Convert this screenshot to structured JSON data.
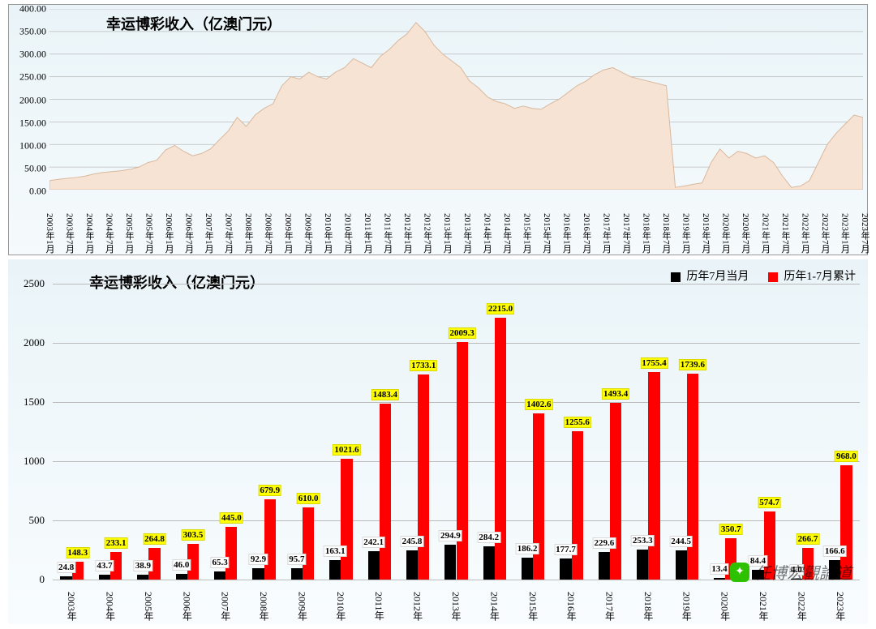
{
  "top_chart": {
    "type": "area",
    "title": "幸运博彩收入（亿澳门元）",
    "title_fontsize": 18,
    "background_gradient": [
      "#eaf4f8",
      "#f5fafc"
    ],
    "area_fill": "#f6e3d4",
    "area_stroke": "#d9b89c",
    "ylim": [
      0,
      400
    ],
    "ytick_step": 50,
    "yticks": [
      "0.00",
      "50.00",
      "100.00",
      "150.00",
      "200.00",
      "250.00",
      "300.00",
      "350.00",
      "400.00"
    ],
    "xlabels": [
      "2003年1月",
      "2003年7月",
      "2004年1月",
      "2004年7月",
      "2005年1月",
      "2005年7月",
      "2006年1月",
      "2006年7月",
      "2007年1月",
      "2007年7月",
      "2008年1月",
      "2008年7月",
      "2009年1月",
      "2009年7月",
      "2010年1月",
      "2010年7月",
      "2011年1月",
      "2011年7月",
      "2012年1月",
      "2012年7月",
      "2013年1月",
      "2013年7月",
      "2014年1月",
      "2014年7月",
      "2015年1月",
      "2015年7月",
      "2016年1月",
      "2016年7月",
      "2017年1月",
      "2017年7月",
      "2018年1月",
      "2018年7月",
      "2019年1月",
      "2019年7月",
      "2020年1月",
      "2020年7月",
      "2021年1月",
      "2021年7月",
      "2022年1月",
      "2022年7月",
      "2023年1月",
      "2023年7月"
    ],
    "series": [
      20,
      23,
      25,
      27,
      30,
      35,
      38,
      40,
      42,
      45,
      50,
      60,
      65,
      88,
      98,
      85,
      75,
      80,
      90,
      110,
      130,
      160,
      140,
      165,
      180,
      190,
      230,
      250,
      245,
      260,
      250,
      245,
      260,
      270,
      290,
      280,
      270,
      295,
      310,
      330,
      345,
      370,
      350,
      320,
      300,
      285,
      270,
      240,
      225,
      205,
      195,
      190,
      180,
      185,
      180,
      178,
      190,
      200,
      215,
      230,
      240,
      255,
      265,
      270,
      260,
      250,
      245,
      240,
      235,
      230,
      5,
      8,
      12,
      15,
      60,
      90,
      70,
      85,
      80,
      70,
      75,
      60,
      30,
      5,
      8,
      20,
      60,
      100,
      125,
      145,
      165,
      160
    ]
  },
  "bottom_chart": {
    "type": "grouped_bar",
    "title": "幸运博彩收入（亿澳门元）",
    "title_fontsize": 18,
    "background_gradient": [
      "#eaf4f8",
      "#f8fcfe"
    ],
    "ylim": [
      0,
      2500
    ],
    "ytick_step": 500,
    "yticks": [
      "0",
      "500",
      "1000",
      "1500",
      "2000",
      "2500"
    ],
    "grid_color": "#bbbbbb",
    "legend": [
      {
        "label": "历年7月当月",
        "color": "#000000"
      },
      {
        "label": "历年1-7月累计",
        "color": "#ff0000"
      }
    ],
    "label_bg_black": "#ffffff",
    "label_bg_red": "#ffff00",
    "bar_width_ratio": 0.3,
    "categories": [
      "2003年",
      "2004年",
      "2005年",
      "2006年",
      "2007年",
      "2008年",
      "2009年",
      "2010年",
      "2011年",
      "2012年",
      "2013年",
      "2014年",
      "2015年",
      "2016年",
      "2017年",
      "2018年",
      "2019年",
      "2020年",
      "2021年",
      "2022年",
      "2023年"
    ],
    "series_black": [
      24.8,
      43.7,
      38.9,
      46.0,
      65.3,
      92.9,
      95.7,
      163.1,
      242.1,
      245.8,
      294.9,
      284.2,
      186.2,
      177.7,
      229.6,
      253.3,
      244.5,
      13.4,
      84.4,
      4.0,
      166.6
    ],
    "series_red": [
      148.3,
      233.1,
      264.8,
      303.5,
      445.0,
      679.9,
      610.0,
      1021.6,
      1483.4,
      1733.1,
      2009.3,
      2215.0,
      1402.6,
      1255.6,
      1493.4,
      1755.4,
      1739.6,
      350.7,
      574.7,
      266.7,
      968.0
    ],
    "labels_black": [
      "24.8",
      "43.7",
      "38.9",
      "46.0",
      "65.3",
      "92.9",
      "95.7",
      "163.1",
      "242.1",
      "245.8",
      "294.9",
      "284.2",
      "186.2",
      "177.7",
      "229.6",
      "253.3",
      "244.5",
      "13.4",
      "84.4",
      "4.0",
      "166.6"
    ],
    "labels_red": [
      "148.3",
      "233.1",
      "264.8",
      "303.5",
      "445.0",
      "679.9",
      "610.0",
      "1021.6",
      "1483.4",
      "1733.1",
      "2009.3",
      "2215.0",
      "1402.6",
      "1255.6",
      "1493.4",
      "1755.4",
      "1739.6",
      "350.7",
      "574.7",
      "266.7",
      "968.0"
    ]
  },
  "watermark": {
    "text": "任博宏觀論道",
    "icon_glyph": "✦",
    "icon_bg": "#2dc100"
  }
}
